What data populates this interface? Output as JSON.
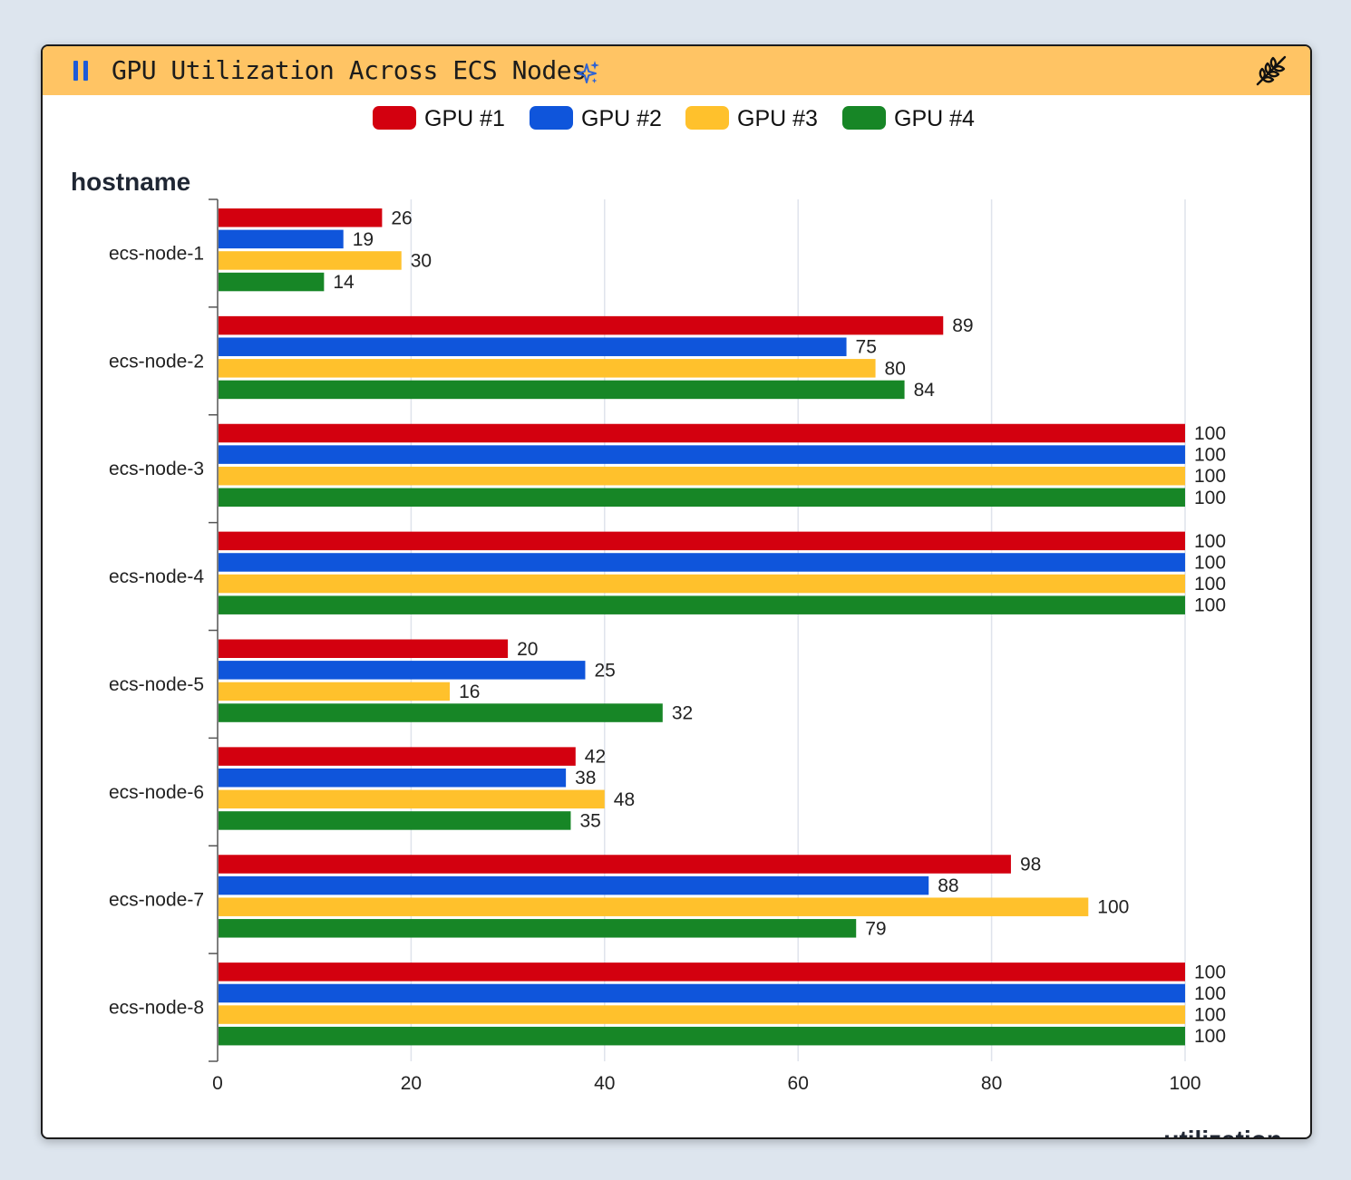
{
  "header": {
    "title": "GPU Utilization Across ECS Nodes",
    "pause_icon": "pause-icon",
    "ai_icon": "sparkles-icon",
    "settings_icon": "wheat-icon",
    "background": "#ffc464"
  },
  "chart_data": {
    "type": "bar",
    "orientation": "horizontal",
    "ylabel": "hostname",
    "xlabel": "utilization",
    "xlim": [
      0,
      100
    ],
    "xticks": [
      0,
      20,
      40,
      60,
      80,
      100
    ],
    "grid": true,
    "legend_position": "top",
    "categories": [
      "ecs-node-1",
      "ecs-node-2",
      "ecs-node-3",
      "ecs-node-4",
      "ecs-node-5",
      "ecs-node-6",
      "ecs-node-7",
      "ecs-node-8"
    ],
    "series": [
      {
        "name": "GPU #1",
        "color": "#d3000f",
        "values": [
          26,
          89,
          100,
          100,
          20,
          42,
          98,
          100
        ],
        "bar_lengths": [
          17,
          75,
          100,
          100,
          30,
          37,
          82,
          100
        ]
      },
      {
        "name": "GPU #2",
        "color": "#0f55db",
        "values": [
          19,
          75,
          100,
          100,
          25,
          38,
          88,
          100
        ],
        "bar_lengths": [
          13,
          65,
          100,
          100,
          38,
          36,
          73.5,
          100
        ]
      },
      {
        "name": "GPU #3",
        "color": "#ffc12c",
        "values": [
          30,
          80,
          100,
          100,
          16,
          48,
          100,
          100
        ],
        "bar_lengths": [
          19,
          68,
          100,
          100,
          24,
          40,
          90,
          100
        ]
      },
      {
        "name": "GPU #4",
        "color": "#178626",
        "values": [
          14,
          84,
          100,
          100,
          32,
          35,
          79,
          100
        ],
        "bar_lengths": [
          11,
          71,
          100,
          100,
          46,
          36.5,
          66,
          100
        ]
      }
    ]
  }
}
